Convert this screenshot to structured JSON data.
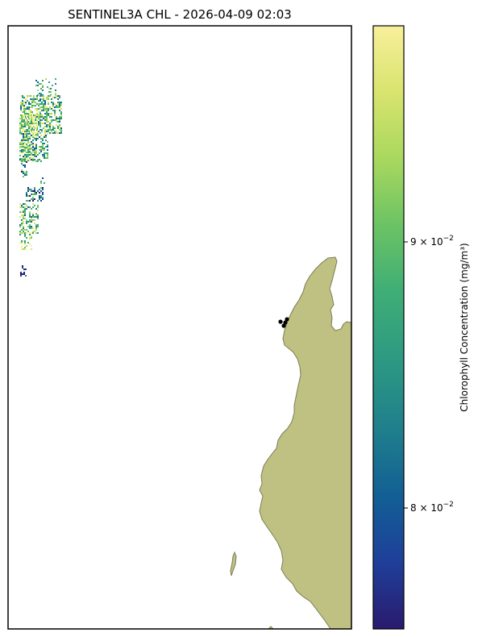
{
  "chart_data": {
    "type": "heatmap",
    "title": "SENTINEL3A CHL - 2026-04-09 02:03",
    "colorbar": {
      "label": "Chlorophyll Concentration (mg/m³)",
      "scale": "log",
      "colormap": "viridis-like (dark blue → green → yellow)",
      "range": [
        0.0755,
        0.0995
      ],
      "ticks": [
        {
          "value": 0.08,
          "label_base": "8 × 10",
          "label_exp": "−2"
        },
        {
          "value": 0.09,
          "label_base": "9 × 10",
          "label_exp": "−2"
        }
      ],
      "colors": [
        "#2a1a6e",
        "#1f3f9a",
        "#125f95",
        "#1f7f8c",
        "#2c9883",
        "#3fae76",
        "#6cc364",
        "#a9d85e",
        "#d9e46e",
        "#f8ef9b"
      ]
    },
    "map": {
      "land_color": "#bfc182",
      "coast_color": "#7d7d55",
      "markers": [
        {
          "lon_frac": 0.0,
          "lat_frac": 0.0
        },
        {
          "lon_frac": 0.0,
          "lat_frac": 0.0
        },
        {
          "lon_frac": 0.0,
          "lat_frac": 0.0
        }
      ]
    }
  }
}
